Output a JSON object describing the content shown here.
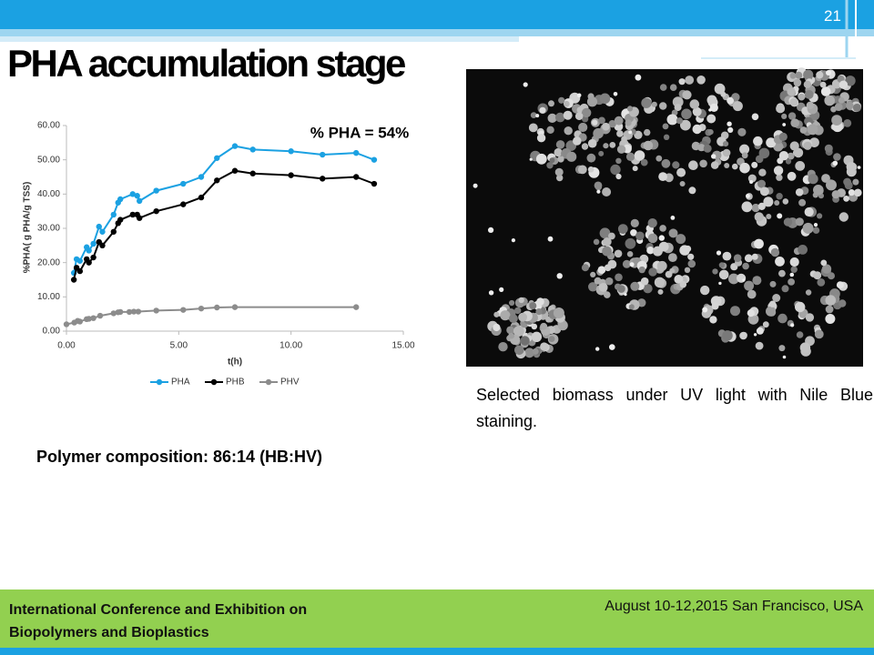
{
  "slide": {
    "title": "PHA accumulation stage",
    "page_number": "21",
    "composition": "Polymer composition: 86:14 (HB:HV)",
    "image_caption": "Selected biomass under UV light with Nile Blue staining.",
    "footer_left": "International Conference and Exhibition on Biopolymers and Bioplastics",
    "footer_right": "August 10-12,2015 San Francisco, USA"
  },
  "chart_data": {
    "type": "line",
    "annotation": "% PHA = 54%",
    "x_label": "t(h)",
    "y_label": "%PHA( g PHA/g TSS)",
    "xlim": [
      0,
      15
    ],
    "ylim": [
      0,
      60
    ],
    "xticks": [
      {
        "value": 0,
        "label": "0.00"
      },
      {
        "value": 5,
        "label": "5.00"
      },
      {
        "value": 10,
        "label": "10.00"
      },
      {
        "value": 15,
        "label": "15.00"
      }
    ],
    "yticks": [
      {
        "value": 0,
        "label": "0.00"
      },
      {
        "value": 10,
        "label": "10.00"
      },
      {
        "value": 20,
        "label": "20.00"
      },
      {
        "value": 30,
        "label": "30.00"
      },
      {
        "value": 40,
        "label": "40.00"
      },
      {
        "value": 50,
        "label": "50.00"
      },
      {
        "value": 60,
        "label": "60.00"
      }
    ],
    "grid": false,
    "legend": "bottom",
    "series": [
      {
        "name": "PHA",
        "color": "#1ba1e2",
        "x": [
          0.33,
          0.45,
          0.6,
          0.9,
          1.0,
          1.2,
          1.45,
          1.6,
          2.1,
          2.3,
          2.4,
          2.95,
          3.15,
          3.25,
          4.0,
          5.2,
          6.0,
          6.7,
          7.5,
          8.3,
          10.0,
          11.4,
          12.9,
          13.7
        ],
        "values": [
          17,
          21,
          20.5,
          24.5,
          23.5,
          25.5,
          30.5,
          29,
          34,
          37.5,
          38.5,
          40,
          39.5,
          38,
          41,
          43,
          45,
          50.5,
          54,
          53,
          52.5,
          51.5,
          52,
          50
        ]
      },
      {
        "name": "PHB",
        "color": "#000000",
        "x": [
          0.33,
          0.45,
          0.6,
          0.9,
          1.0,
          1.2,
          1.45,
          1.6,
          2.1,
          2.3,
          2.4,
          2.95,
          3.15,
          3.25,
          4.0,
          5.2,
          6.0,
          6.7,
          7.5,
          8.3,
          10.0,
          11.4,
          12.9,
          13.7
        ],
        "values": [
          15,
          18.5,
          17.5,
          21,
          20,
          21.5,
          26,
          25,
          29,
          31.5,
          32.5,
          34,
          34,
          33,
          35,
          37,
          39,
          44,
          46.8,
          46,
          45.5,
          44.5,
          45,
          43
        ]
      },
      {
        "name": "PHV",
        "color": "#8c8c8c",
        "x": [
          0,
          0.35,
          0.5,
          0.6,
          0.9,
          1.0,
          1.2,
          1.5,
          2.1,
          2.3,
          2.4,
          2.8,
          3.0,
          3.2,
          4.0,
          5.2,
          6.0,
          6.7,
          7.5,
          12.9
        ],
        "values": [
          2,
          2.5,
          3,
          2.8,
          3.5,
          3.6,
          3.8,
          4.5,
          5.2,
          5.5,
          5.6,
          5.6,
          5.7,
          5.7,
          6,
          6.2,
          6.6,
          6.9,
          7,
          7
        ]
      }
    ]
  }
}
